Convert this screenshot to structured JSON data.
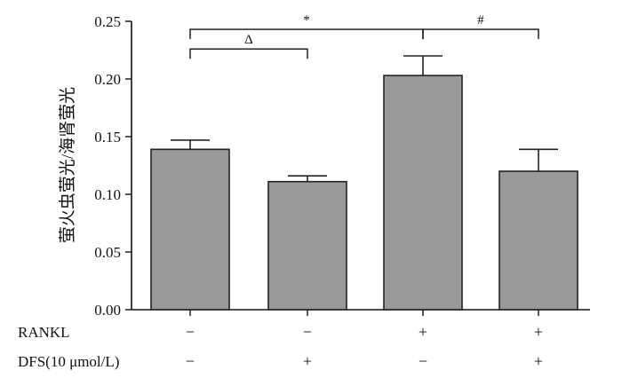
{
  "chart_data": {
    "type": "bar",
    "title": "",
    "xlabel": "",
    "ylabel": "萤火虫萤光/海肾萤光",
    "ylim": [
      0,
      0.25
    ],
    "yticks": [
      "0.00",
      "0.05",
      "0.10",
      "0.15",
      "0.20",
      "0.25"
    ],
    "categories": [
      "RANKL − / DFS −",
      "RANKL − / DFS +",
      "RANKL + / DFS −",
      "RANKL + / DFS +"
    ],
    "values": [
      0.139,
      0.111,
      0.203,
      0.12
    ],
    "errors": [
      0.008,
      0.005,
      0.017,
      0.019
    ],
    "bar_color": "#999999",
    "treatment_rows": [
      {
        "label": "RANKL",
        "marks": [
          "−",
          "−",
          "+",
          "+"
        ]
      },
      {
        "label": "DFS(10 μmol/L)",
        "marks": [
          "−",
          "+",
          "−",
          "+"
        ]
      }
    ],
    "significance": [
      {
        "from": 0,
        "to": 1,
        "label": "Δ",
        "y": 0.226
      },
      {
        "from": 0,
        "to": 2,
        "label": "*",
        "y": 0.243
      },
      {
        "from": 2,
        "to": 3,
        "label": "#",
        "y": 0.243
      }
    ],
    "grid": false,
    "legend": "none"
  }
}
